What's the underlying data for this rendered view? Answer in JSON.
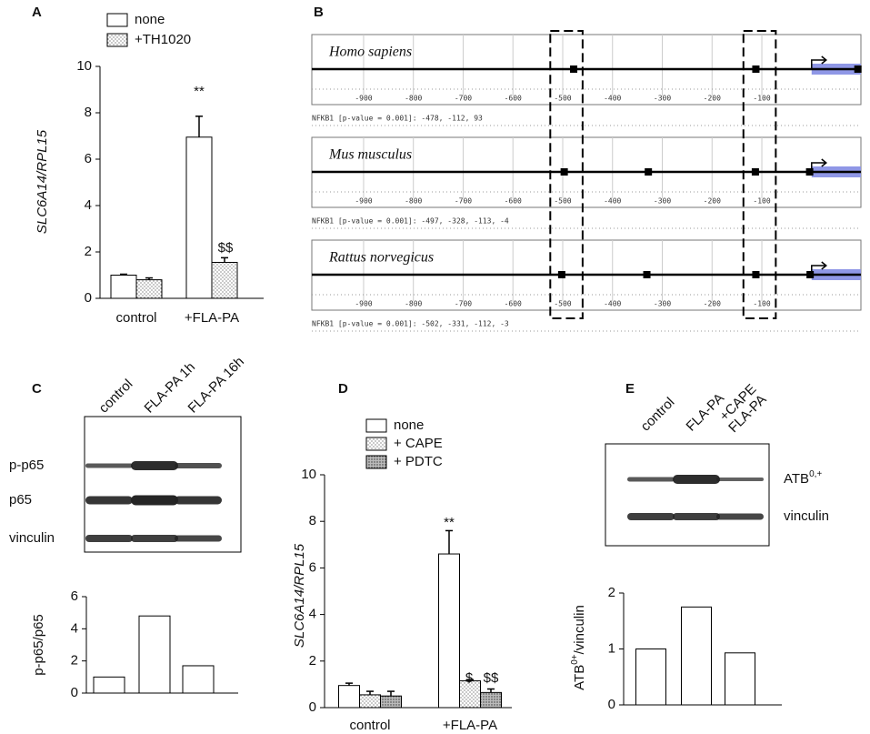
{
  "chart_data": [
    {
      "type": "bar",
      "panel": "A",
      "y_label": "SLC6A14/RPL15",
      "categories": [
        "control",
        "+FLA-PA"
      ],
      "series": [
        {
          "name": "none",
          "color": "#ffffff",
          "pattern": "none",
          "values": [
            1.0,
            6.95
          ],
          "errors": [
            0.04,
            0.9
          ]
        },
        {
          "name": "+TH1020",
          "color": "#ffffff",
          "pattern": "dots",
          "values": [
            0.8,
            1.55
          ],
          "errors": [
            0.08,
            0.2
          ]
        }
      ],
      "ylim": [
        0,
        10
      ],
      "yticks": [
        0,
        2,
        4,
        6,
        8,
        10
      ],
      "annotations": [
        "**",
        "$$"
      ]
    },
    {
      "type": "promoter",
      "panel": "B",
      "xlim": [
        -1004,
        99
      ],
      "xticks": [
        -900,
        -800,
        -700,
        -600,
        -500,
        -400,
        -300,
        -200,
        -100
      ],
      "tracks": [
        {
          "name": "Homo sapiens",
          "sites": [
            -478,
            -112,
            93
          ],
          "caption": "NFKB1 [p-value = 0.001]: -478, -112, 93"
        },
        {
          "name": "Mus musculus",
          "sites": [
            -497,
            -328,
            -113,
            -4
          ],
          "caption": "NFKB1 [p-value = 0.001]: -497, -328, -113, -4"
        },
        {
          "name": "Rattus norvegicus",
          "sites": [
            -502,
            -331,
            -112,
            -3
          ],
          "caption": "NFKB1 [p-value = 0.001]: -502, -331, -112, -3"
        }
      ]
    },
    {
      "type": "blot_bar",
      "panel": "C",
      "lanes": [
        [
          "control"
        ],
        [
          "FLA-PA 1h"
        ],
        [
          "FLA-PA 16h"
        ]
      ],
      "bands": [
        [
          "p-p65"
        ],
        [
          "p65"
        ],
        [
          "vinculin"
        ]
      ],
      "y_label": [
        "p-p65/p65"
      ],
      "values": [
        1.0,
        4.8,
        1.7
      ],
      "color": "#ffffff",
      "ylim": [
        0,
        6
      ],
      "yticks": [
        0,
        2,
        4,
        6
      ]
    },
    {
      "type": "bar",
      "panel": "D",
      "y_label": "SLC6A14/RPL15",
      "categories": [
        "control",
        "+FLA-PA"
      ],
      "series": [
        {
          "name": "none",
          "color": "#ffffff",
          "pattern": "none",
          "values": [
            0.95,
            6.6
          ],
          "errors": [
            0.1,
            1.0
          ]
        },
        {
          "name": "+ CAPE",
          "color": "#ffffff",
          "pattern": "dots",
          "values": [
            0.55,
            1.15
          ],
          "errors": [
            0.15,
            0.05
          ]
        },
        {
          "name": "+ PDTC",
          "color": "#ffffff",
          "pattern": "dense",
          "values": [
            0.5,
            0.65
          ],
          "errors": [
            0.2,
            0.15
          ]
        }
      ],
      "ylim": [
        0,
        10
      ],
      "yticks": [
        0,
        2,
        4,
        6,
        8,
        10
      ],
      "annotations": [
        "**",
        "$",
        "$$"
      ]
    },
    {
      "type": "blot_bar",
      "panel": "E",
      "lanes": [
        [
          "control"
        ],
        [
          "FLA-PA"
        ],
        [
          "FLA-PA",
          "+CAPE"
        ]
      ],
      "bands": [
        [
          "ATB",
          "0,+"
        ],
        [
          "vinculin"
        ]
      ],
      "y_label": [
        "ATB",
        "0+",
        "/vinculin"
      ],
      "values": [
        1.0,
        1.75,
        0.93
      ],
      "color": "#ffffff",
      "ylim": [
        0,
        2
      ],
      "yticks": [
        0,
        1,
        2
      ]
    }
  ]
}
